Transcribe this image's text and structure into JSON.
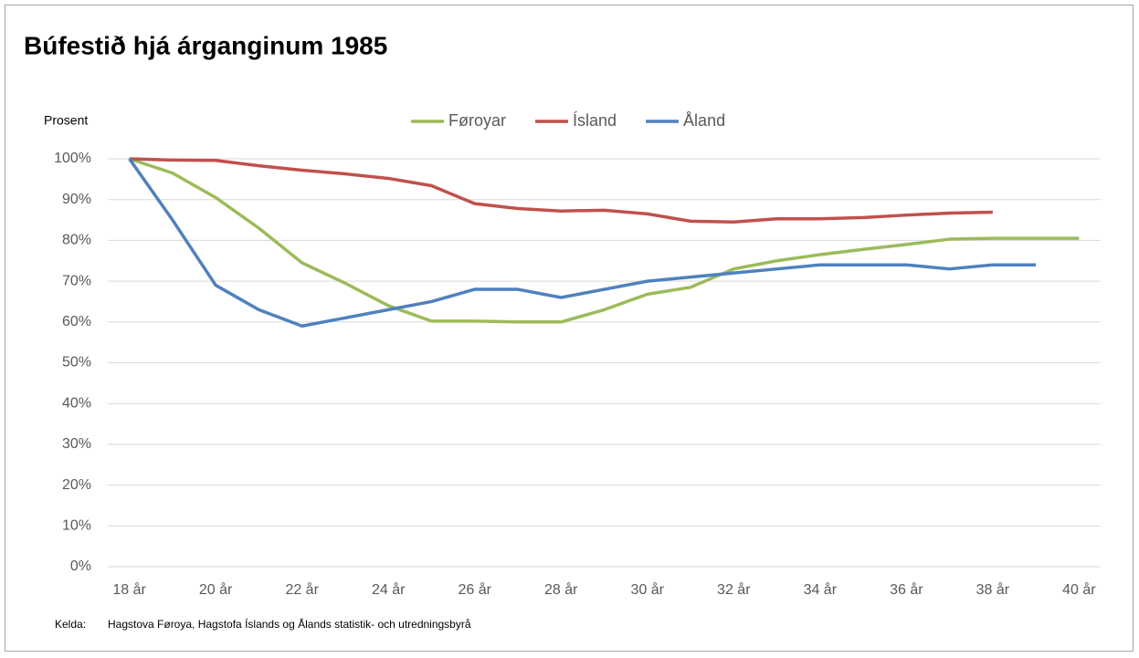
{
  "chart_data": {
    "type": "line",
    "title": "Búfestið hjá árganginum 1985",
    "y_label": "Prosent",
    "categories": [
      "18 år",
      null,
      "20 år",
      null,
      "22 år",
      null,
      "24 år",
      null,
      "26 år",
      null,
      "28 år",
      null,
      "30 år",
      null,
      "32 år",
      null,
      "34 år",
      null,
      "36 år",
      null,
      "38 år",
      null,
      "40 år"
    ],
    "series": [
      {
        "name": "Føroyar",
        "color": "#9bbb59",
        "values": [
          100,
          96.5,
          90.5,
          83,
          74.5,
          69.5,
          64,
          60.2,
          60.2,
          60,
          60,
          63,
          66.8,
          68.5,
          73,
          75,
          76.5,
          77.8,
          79,
          80.3,
          80.5,
          80.5,
          80.5
        ]
      },
      {
        "name": "Ísland",
        "color": "#c0504d",
        "values": [
          100,
          99.7,
          99.6,
          98.3,
          97.2,
          96.3,
          95.2,
          93.4,
          89,
          87.8,
          87.2,
          87.4,
          86.5,
          84.7,
          84.5,
          85.3,
          85.3,
          85.6,
          86.2,
          86.7,
          86.9,
          null,
          null
        ]
      },
      {
        "name": "Åland",
        "color": "#4f81bd",
        "values": [
          100,
          85,
          69,
          63,
          59,
          61,
          63,
          65,
          68,
          68,
          66,
          68,
          70,
          71,
          72,
          73,
          74,
          74,
          74,
          73,
          74,
          74,
          null
        ]
      }
    ],
    "ylim": [
      0,
      100
    ],
    "yticks": [
      {
        "value": 0,
        "label": "0%"
      },
      {
        "value": 10,
        "label": "10%"
      },
      {
        "value": 20,
        "label": "20%"
      },
      {
        "value": 30,
        "label": "30%"
      },
      {
        "value": 40,
        "label": "40%"
      },
      {
        "value": 50,
        "label": "50%"
      },
      {
        "value": 60,
        "label": "60%"
      },
      {
        "value": 70,
        "label": "70%"
      },
      {
        "value": 80,
        "label": "80%"
      },
      {
        "value": 90,
        "label": "90%"
      },
      {
        "value": 100,
        "label": "100%"
      }
    ],
    "grid": true,
    "legend": "top",
    "source_label": "Kelda:",
    "source": "Hagstova Føroya, Hagstofa Íslands og Ålands statistik- och utredningsbyrå"
  }
}
